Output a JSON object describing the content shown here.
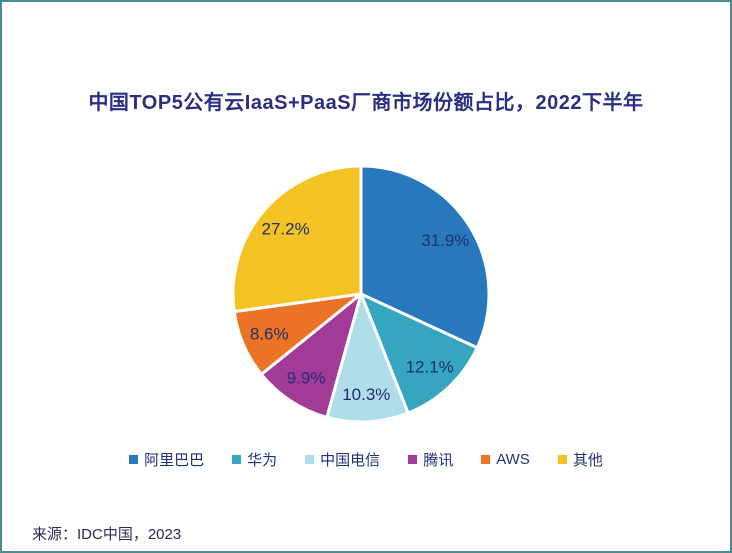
{
  "chart_data": {
    "type": "pie",
    "title": "中国TOP5公有云IaaS+PaaS厂商市场份额占比，2022下半年",
    "unit": "%",
    "start_angle_deg": 0,
    "direction": "clockwise",
    "legend_position": "bottom",
    "label_color": "#203070",
    "source": "来源：IDC中国，2023",
    "slices": [
      {
        "name": "alibaba",
        "label": "阿里巴巴",
        "value": 31.9,
        "display": "31.9%",
        "color": "#2878BD"
      },
      {
        "name": "huawei",
        "label": "华为",
        "value": 12.1,
        "display": "12.1%",
        "color": "#36A6C0"
      },
      {
        "name": "china-telecom",
        "label": "中国电信",
        "value": 10.3,
        "display": "10.3%",
        "color": "#AFDEEA"
      },
      {
        "name": "tencent",
        "label": "腾讯",
        "value": 9.9,
        "display": "9.9%",
        "color": "#A23A98"
      },
      {
        "name": "aws",
        "label": "AWS",
        "value": 8.6,
        "display": "8.6%",
        "color": "#EA7424"
      },
      {
        "name": "other",
        "label": "其他",
        "value": 27.2,
        "display": "27.2%",
        "color": "#F3C223"
      }
    ]
  },
  "colors": {
    "border": "#4A8C94",
    "background": "#FFFFFF",
    "title_text": "#2B2E83",
    "legend_text": "#203079",
    "source_text": "#2B2B55",
    "slice_separator": "#FFFFFF"
  }
}
